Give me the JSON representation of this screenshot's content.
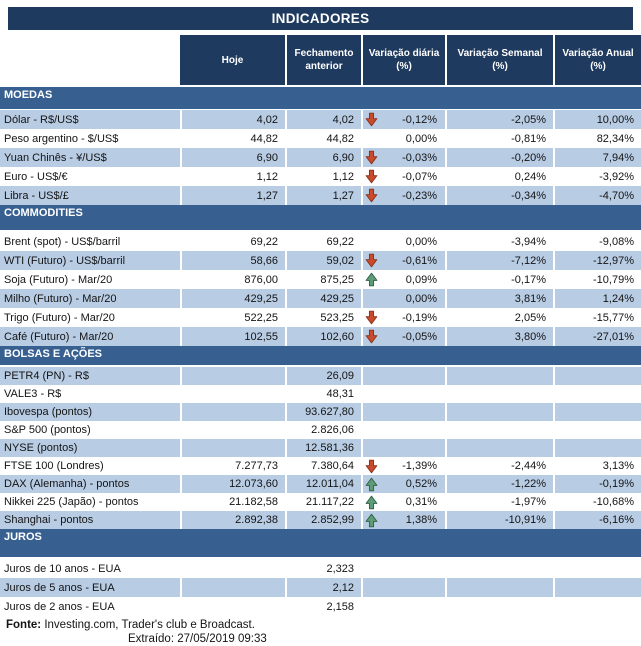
{
  "title": "INDICADORES",
  "columns": [
    {
      "line1": "Hoje",
      "line2": ""
    },
    {
      "line1": "Fechamento",
      "line2": "anterior"
    },
    {
      "line1": "Variação diária",
      "line2": "(%)"
    },
    {
      "line1": "Variação Semanal",
      "line2": "(%)"
    },
    {
      "line1": "Variação Anual",
      "line2": "(%)"
    }
  ],
  "sections": [
    {
      "name": "MOEDAS",
      "rows": [
        {
          "label": "Dólar - R$/US$",
          "hoje": "4,02",
          "fechamento": "4,02",
          "arrow": "down",
          "var_diaria": "-0,12%",
          "var_semanal": "-2,05%",
          "var_anual": "10,00%"
        },
        {
          "label": "Peso argentino - $/US$",
          "hoje": "44,82",
          "fechamento": "44,82",
          "arrow": "",
          "var_diaria": "0,00%",
          "var_semanal": "-0,81%",
          "var_anual": "82,34%"
        },
        {
          "label": "Yuan Chinês - ¥/US$",
          "hoje": "6,90",
          "fechamento": "6,90",
          "arrow": "down",
          "var_diaria": "-0,03%",
          "var_semanal": "-0,20%",
          "var_anual": "7,94%"
        },
        {
          "label": "Euro - US$/€",
          "hoje": "1,12",
          "fechamento": "1,12",
          "arrow": "down",
          "var_diaria": "-0,07%",
          "var_semanal": "0,24%",
          "var_anual": "-3,92%"
        },
        {
          "label": "Libra - US$/£",
          "hoje": "1,27",
          "fechamento": "1,27",
          "arrow": "down",
          "var_diaria": "-0,23%",
          "var_semanal": "-0,34%",
          "var_anual": "-4,70%"
        }
      ]
    },
    {
      "name": "COMMODITIES",
      "rows": [
        {
          "label": "Brent (spot) - US$/barril",
          "hoje": "69,22",
          "fechamento": "69,22",
          "arrow": "",
          "var_diaria": "0,00%",
          "var_semanal": "-3,94%",
          "var_anual": "-9,08%"
        },
        {
          "label": "WTI (Futuro) - US$/barril",
          "hoje": "58,66",
          "fechamento": "59,02",
          "arrow": "down",
          "var_diaria": "-0,61%",
          "var_semanal": "-7,12%",
          "var_anual": "-12,97%"
        },
        {
          "label": "Soja (Futuro) - Mar/20",
          "hoje": "876,00",
          "fechamento": "875,25",
          "arrow": "up",
          "var_diaria": "0,09%",
          "var_semanal": "-0,17%",
          "var_anual": "-10,79%"
        },
        {
          "label": "Milho (Futuro) - Mar/20",
          "hoje": "429,25",
          "fechamento": "429,25",
          "arrow": "",
          "var_diaria": "0,00%",
          "var_semanal": "3,81%",
          "var_anual": "1,24%"
        },
        {
          "label": "Trigo (Futuro) - Mar/20",
          "hoje": "522,25",
          "fechamento": "523,25",
          "arrow": "down",
          "var_diaria": "-0,19%",
          "var_semanal": "2,05%",
          "var_anual": "-15,77%"
        },
        {
          "label": "Café (Futuro) - Mar/20",
          "hoje": "102,55",
          "fechamento": "102,60",
          "arrow": "down",
          "var_diaria": "-0,05%",
          "var_semanal": "3,80%",
          "var_anual": "-27,01%"
        }
      ]
    },
    {
      "name": "BOLSAS E AÇÕES",
      "rows": [
        {
          "label": "PETR4 (PN) - R$",
          "hoje": "",
          "fechamento": "26,09",
          "arrow": "",
          "var_diaria": "",
          "var_semanal": "",
          "var_anual": ""
        },
        {
          "label": "VALE3 - R$",
          "hoje": "",
          "fechamento": "48,31",
          "arrow": "",
          "var_diaria": "",
          "var_semanal": "",
          "var_anual": ""
        },
        {
          "label": "Ibovespa (pontos)",
          "hoje": "",
          "fechamento": "93.627,80",
          "arrow": "",
          "var_diaria": "",
          "var_semanal": "",
          "var_anual": ""
        },
        {
          "label": "S&P 500 (pontos)",
          "hoje": "",
          "fechamento": "2.826,06",
          "arrow": "",
          "var_diaria": "",
          "var_semanal": "",
          "var_anual": ""
        },
        {
          "label": "NYSE (pontos)",
          "hoje": "",
          "fechamento": "12.581,36",
          "arrow": "",
          "var_diaria": "",
          "var_semanal": "",
          "var_anual": ""
        },
        {
          "label": "FTSE 100 (Londres)",
          "hoje": "7.277,73",
          "fechamento": "7.380,64",
          "arrow": "down",
          "var_diaria": "-1,39%",
          "var_semanal": "-2,44%",
          "var_anual": "3,13%"
        },
        {
          "label": "DAX (Alemanha) - pontos",
          "hoje": "12.073,60",
          "fechamento": "12.011,04",
          "arrow": "up",
          "var_diaria": "0,52%",
          "var_semanal": "-1,22%",
          "var_anual": "-0,19%"
        },
        {
          "label": "Nikkei 225 (Japão) - pontos",
          "hoje": "21.182,58",
          "fechamento": "21.117,22",
          "arrow": "up",
          "var_diaria": "0,31%",
          "var_semanal": "-1,97%",
          "var_anual": "-10,68%"
        },
        {
          "label": "Shanghai - pontos",
          "hoje": "2.892,38",
          "fechamento": "2.852,99",
          "arrow": "up",
          "var_diaria": "1,38%",
          "var_semanal": "-10,91%",
          "var_anual": "-6,16%"
        }
      ]
    },
    {
      "name": "JUROS",
      "rows": [
        {
          "label": "Juros de 10 anos - EUA",
          "hoje": "",
          "fechamento": "2,323",
          "arrow": "",
          "var_diaria": "",
          "var_semanal": "",
          "var_anual": ""
        },
        {
          "label": "Juros de 5 anos - EUA",
          "hoje": "",
          "fechamento": "2,12",
          "arrow": "",
          "var_diaria": "",
          "var_semanal": "",
          "var_anual": ""
        },
        {
          "label": "Juros de 2 anos - EUA",
          "hoje": "",
          "fechamento": "2,158",
          "arrow": "",
          "var_diaria": "",
          "var_semanal": "",
          "var_anual": ""
        }
      ]
    }
  ],
  "footer": {
    "fonte_label": "Fonte:",
    "fonte_text": " Investing.com, Trader's club e Broadcast.",
    "extraido": "Extraído: 27/05/2019 09:33"
  },
  "icons": {
    "arrow_down": "arrow-down-icon",
    "arrow_up": "arrow-up-icon"
  },
  "colors": {
    "header_navy": "#1F3A5F",
    "section_blue": "#376091",
    "row_shaded": "#B8CCE4",
    "arrow_down_red": "#C94B2F",
    "arrow_down_border": "#8A3015",
    "arrow_up_green": "#5E9C78",
    "arrow_up_border": "#2E5F45"
  }
}
